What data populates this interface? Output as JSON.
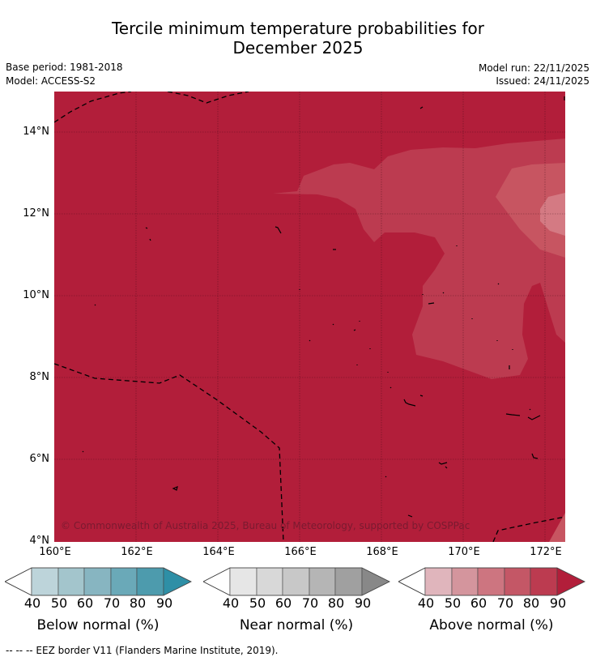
{
  "title": {
    "line1": "Tercile minimum temperature probabilities for",
    "line2": "December 2025"
  },
  "meta": {
    "base_period": "Base period: 1981-2018",
    "model": "Model: ACCESS-S2",
    "model_run": "Model run: 22/11/2025",
    "issued": "Issued: 24/11/2025"
  },
  "axes": {
    "lat_labels": [
      "14°N",
      "12°N",
      "10°N",
      "8°N",
      "6°N",
      "4°N"
    ],
    "lon_labels": [
      "160°E",
      "162°E",
      "164°E",
      "166°E",
      "168°E",
      "170°E",
      "172°E"
    ]
  },
  "copyright": "© Commonwealth of Australia 2025, Bureau of Meteorology, supported by COSPPac",
  "colors": {
    "above_90": "#b21e3a",
    "above_80": "#bd3a52",
    "above_70": "#c75561",
    "above_60": "#d47a83",
    "above_50": "#dda7ad",
    "above_40": "#e8c4c9"
  },
  "colorbars": [
    {
      "title": "Below normal (%)",
      "ticks": [
        "40",
        "50",
        "60",
        "70",
        "80",
        "90"
      ],
      "colors": [
        "#bdd4da",
        "#a3c5cc",
        "#87b5c1",
        "#6aa9b8",
        "#4d9bad",
        "#2e8fa6"
      ]
    },
    {
      "title": "Near normal (%)",
      "ticks": [
        "40",
        "50",
        "60",
        "70",
        "80",
        "90"
      ],
      "colors": [
        "#e6e6e6",
        "#d8d8d8",
        "#c8c8c8",
        "#b5b5b5",
        "#a0a0a0",
        "#888888"
      ]
    },
    {
      "title": "Above normal (%)",
      "ticks": [
        "40",
        "50",
        "60",
        "70",
        "80",
        "90"
      ],
      "colors": [
        "#e0b5bc",
        "#d4959d",
        "#cd7580",
        "#c45766",
        "#bc3b50",
        "#b21e3a"
      ]
    }
  ],
  "footnote": "--  --  -- EEZ border V11 (Flanders Marine Institute, 2019)."
}
